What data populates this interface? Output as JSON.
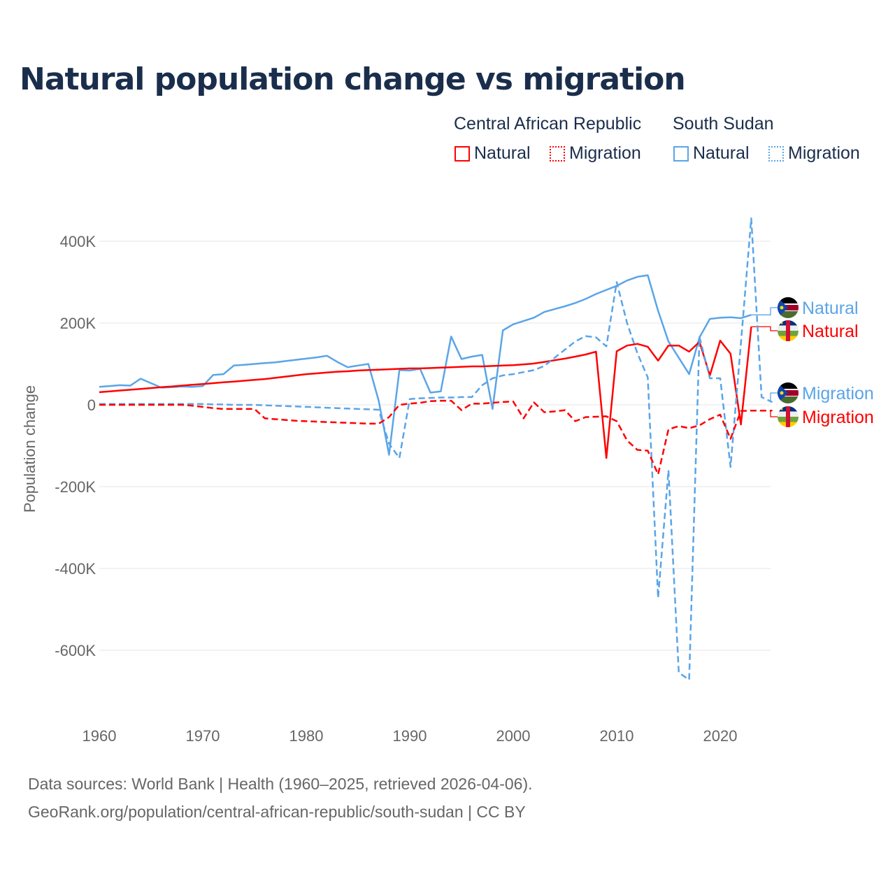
{
  "title": "Natural population change vs migration",
  "legend": {
    "groups": [
      {
        "name": "Central African Republic",
        "items": [
          "Natural",
          "Migration"
        ],
        "color": "#ff0000"
      },
      {
        "name": "South Sudan",
        "items": [
          "Natural",
          "Migration"
        ],
        "color": "#5aa5e8"
      }
    ]
  },
  "footer": {
    "line1": "Data sources: World Bank | Health (1960–2025, retrieved 2026-04-06).",
    "line2": "GeoRank.org/population/central-african-republic/south-sudan | CC BY"
  },
  "chart_data": {
    "type": "line",
    "title": "Natural population change vs migration",
    "xlabel": "",
    "ylabel": "Population change",
    "xlim": [
      1960,
      2025
    ],
    "ylim": [
      -700000,
      460000
    ],
    "x_ticks": [
      1960,
      1970,
      1980,
      1990,
      2000,
      2010,
      2020
    ],
    "x_tick_labels": [
      "1960",
      "1970",
      "1980",
      "1990",
      "2000",
      "2010",
      "2020"
    ],
    "y_ticks": [
      400000,
      200000,
      0,
      -200000,
      -400000,
      -600000
    ],
    "y_tick_labels": [
      "400K",
      "200K",
      "0",
      "-200K",
      "-400K",
      "-600K"
    ],
    "grid": true,
    "legend_position": "top-right",
    "start_year": 1960,
    "series": [
      {
        "name": "South Sudan Natural",
        "label": "Natural",
        "country": "South Sudan",
        "color": "#5aa5e8",
        "dash": false,
        "unit": "K",
        "values": [
          44,
          46,
          48,
          47,
          64,
          53,
          42,
          43,
          45,
          44,
          46,
          73,
          75,
          96,
          98,
          100,
          102,
          104,
          107,
          110,
          113,
          116,
          120,
          105,
          92,
          96,
          100,
          10,
          -122,
          85,
          84,
          88,
          30,
          33,
          167,
          112,
          118,
          122,
          -10,
          182,
          197,
          205,
          213,
          227,
          234,
          241,
          249,
          259,
          271,
          281,
          291,
          304,
          313,
          317,
          230,
          155,
          115,
          75,
          165,
          210,
          213,
          214,
          212,
          220
        ]
      },
      {
        "name": "Central African Republic Natural",
        "label": "Natural",
        "country": "Central African Republic",
        "color": "#ff0000",
        "dash": false,
        "unit": "K",
        "values": [
          31,
          33,
          35,
          37,
          39,
          41,
          43,
          45,
          47,
          49,
          51,
          53,
          55,
          57,
          59,
          61,
          63,
          66,
          69,
          72,
          75,
          77,
          79,
          81,
          82,
          84,
          85,
          86,
          87,
          88,
          89,
          89,
          90,
          91,
          92,
          93,
          94,
          94,
          95,
          96,
          97,
          99,
          101,
          105,
          109,
          113,
          118,
          123,
          130,
          -130,
          131,
          145,
          149,
          142,
          108,
          145,
          145,
          130,
          154,
          72,
          157,
          125,
          -48,
          191
        ]
      },
      {
        "name": "South Sudan Migration",
        "label": "Migration",
        "country": "South Sudan",
        "color": "#5aa5e8",
        "dash": true,
        "unit": "K",
        "values": [
          2,
          2,
          2,
          2,
          2,
          2,
          2,
          2,
          2,
          2,
          2,
          1,
          1,
          0,
          0,
          0,
          -1,
          -2,
          -3,
          -4,
          -5,
          -6,
          -7,
          -8,
          -9,
          -10,
          -11,
          -12,
          -95,
          -130,
          14,
          16,
          17,
          18,
          18,
          19,
          19,
          48,
          65,
          72,
          75,
          80,
          85,
          95,
          115,
          135,
          155,
          168,
          165,
          143,
          300,
          200,
          126,
          67,
          -472,
          -160,
          -655,
          -672,
          166,
          65,
          65,
          -152,
          150,
          456,
          19,
          7
        ]
      },
      {
        "name": "Central African Republic Migration",
        "label": "Migration",
        "country": "Central African Republic",
        "color": "#ff0000",
        "dash": true,
        "unit": "K",
        "values": [
          0,
          0,
          0,
          0,
          0,
          0,
          0,
          0,
          0,
          -2,
          -5,
          -8,
          -10,
          -10,
          -10,
          -10,
          -33,
          -35,
          -37,
          -39,
          -40,
          -41,
          -42,
          -43,
          -44,
          -45,
          -46,
          -46,
          -30,
          0,
          3,
          5,
          9,
          10,
          10,
          -13,
          3,
          3,
          5,
          7,
          8,
          -33,
          6,
          -18,
          -16,
          -13,
          -40,
          -30,
          -29,
          -28,
          -40,
          -87,
          -110,
          -112,
          -170,
          -60,
          -52,
          -57,
          -50,
          -35,
          -24,
          -83,
          -15,
          -14,
          -14,
          -14
        ]
      }
    ]
  }
}
